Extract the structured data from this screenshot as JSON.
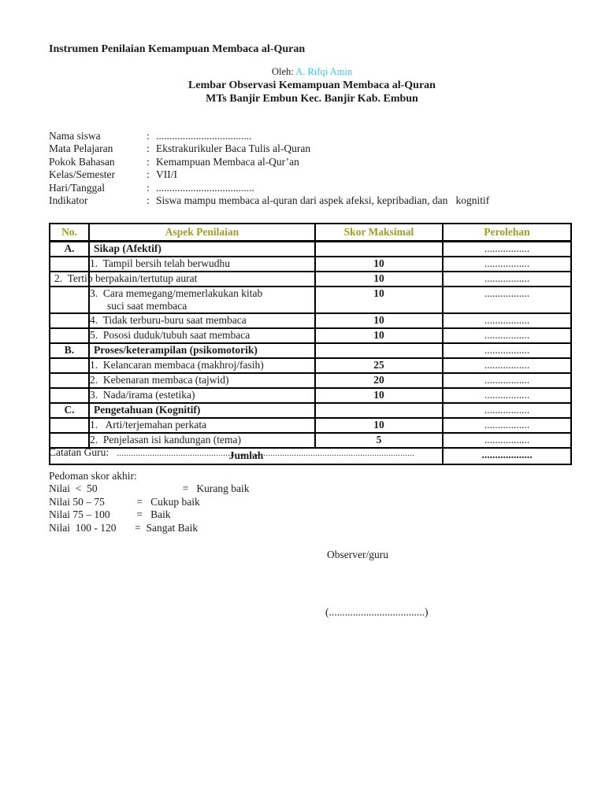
{
  "colors": {
    "author": "#3ec9e8",
    "table_header": "#9c9c2a",
    "body_text": "#1c1c1c"
  },
  "header": {
    "title": "Instrumen Penilaian Kemampuan Membaca al-Quran",
    "byline_label": "Oleh:",
    "byline_author": "A. Rifqi Amin",
    "subtitle1": "Lembar Observasi Kemampuan Membaca al-Quran",
    "subtitle2": "MTs Banjir Embun Kec. Banjir Kab. Embun"
  },
  "form": {
    "separator": ":",
    "fields": [
      {
        "label": "Nama siswa",
        "value": "...................................."
      },
      {
        "label": "Mata Pelajaran",
        "value": "Ekstrakurikuler Baca Tulis al-Quran"
      },
      {
        "label": "Pokok Bahasan",
        "value": "Kemampuan Membaca al-Qur’an"
      },
      {
        "label": "Kelas/Semester",
        "value": "VII/I"
      },
      {
        "label": "Hari/Tanggal",
        "value": "....................................."
      },
      {
        "label": "Indikator",
        "value": "Siswa mampu membaca al-quran dari aspek afeksi, kepribadian, dan   kognitif"
      }
    ]
  },
  "table": {
    "headers": [
      "No.",
      "Aspek Penilaian",
      "Skor Maksimal",
      "Perolehan"
    ],
    "rows": [
      {
        "type": "section",
        "no": "A.",
        "aspek": "Sikap (Afektif)",
        "skor": "",
        "perolehan": "................."
      },
      {
        "type": "item",
        "no": "",
        "aspek": "1.  Tampil bersih telah berwudhu",
        "skor": "10",
        "perolehan": "................."
      },
      {
        "type": "merged",
        "no": "",
        "aspek": "2.  Tertib berpakain/tertutup aurat",
        "skor": "10",
        "perolehan": "................."
      },
      {
        "type": "item",
        "no": "",
        "aspek": "3.  Cara memegang/memerlakukan kitab\nsuci saat membaca",
        "skor": "10",
        "perolehan": "................."
      },
      {
        "type": "item",
        "no": "",
        "aspek": "4.  Tidak terburu-buru saat membaca",
        "skor": "10",
        "perolehan": "................."
      },
      {
        "type": "item",
        "no": "",
        "aspek": "5.  Pososi duduk/tubuh saat membaca",
        "skor": "10",
        "perolehan": "................."
      },
      {
        "type": "section",
        "no": "B.",
        "aspek": "Proses/keterampilan (psikomotorik)",
        "skor": "",
        "perolehan": "................."
      },
      {
        "type": "item",
        "no": "",
        "aspek": "1.  Kelancaran membaca (makhroj/fasih)",
        "skor": "25",
        "perolehan": "................."
      },
      {
        "type": "item",
        "no": "",
        "aspek": "2.  Kebenaran membaca (tajwid)",
        "skor": "20",
        "perolehan": "................."
      },
      {
        "type": "item",
        "no": "",
        "aspek": "3.  Nada/irama (estetika)",
        "skor": "10",
        "perolehan": "................."
      },
      {
        "type": "section",
        "no": "C.",
        "aspek": "Pengetahuan (Kognitif)",
        "skor": "",
        "perolehan": "................."
      },
      {
        "type": "item",
        "no": "",
        "aspek": "1.   Arti/terjemahan perkata",
        "skor": "10",
        "perolehan": "................."
      },
      {
        "type": "item",
        "no": "",
        "aspek": "2.  Penjelasan isi kandungan (tema)",
        "skor": "5",
        "perolehan": "................."
      },
      {
        "type": "total",
        "no": "",
        "aspek": "Jumlah",
        "skor": "",
        "perolehan": "..................."
      }
    ]
  },
  "notes": {
    "catatan_label": "Catatan Guru:",
    "catatan_dots": "..............................................................................................................................",
    "pedoman_title": "Pedoman skor akhir:",
    "pedoman_lines": [
      "Nilai  <  50                                =   Kurang baik",
      "Nilai 50 – 75            =   Cukup baik",
      "Nilai 75 – 100          =   Baik",
      "Nilai  100 - 120       =  Sangat Baik"
    ]
  },
  "footer": {
    "observer": "Observer/guru",
    "signature": "(....................................)"
  }
}
